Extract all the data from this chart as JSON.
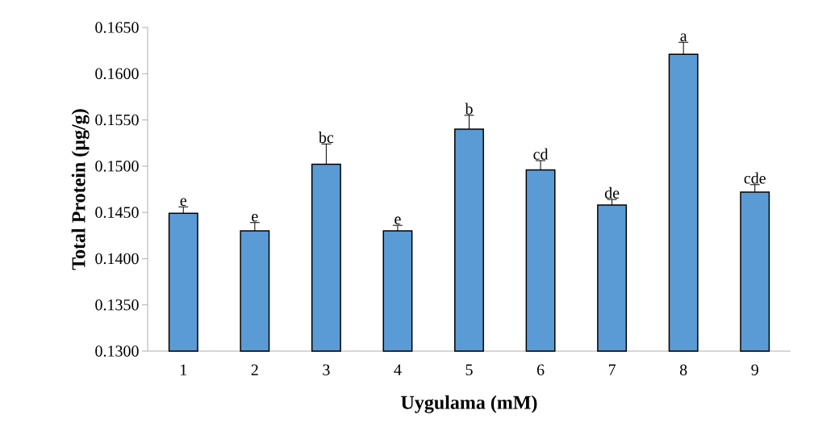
{
  "chart_data": {
    "type": "bar",
    "xlabel": "Uygulama (mM)",
    "ylabel": "Total Protein (µg/g)",
    "categories": [
      "1",
      "2",
      "3",
      "4",
      "5",
      "6",
      "7",
      "8",
      "9"
    ],
    "values": [
      0.1449,
      0.143,
      0.1502,
      0.143,
      0.154,
      0.1496,
      0.1458,
      0.1621,
      0.1472
    ],
    "errors": [
      0.0007,
      0.0009,
      0.0022,
      0.0006,
      0.0015,
      0.001,
      0.0006,
      0.0013,
      0.0008
    ],
    "color": "#5b9bd5",
    "ylim": [
      0.13,
      0.165
    ],
    "yticks": [
      {
        "value": 0.13,
        "label": "0.1300"
      },
      {
        "value": 0.135,
        "label": "0.1350"
      },
      {
        "value": 0.14,
        "label": "0.1400"
      },
      {
        "value": 0.145,
        "label": "0.1450"
      },
      {
        "value": 0.15,
        "label": "0.1500"
      },
      {
        "value": 0.155,
        "label": "0.1550"
      },
      {
        "value": 0.16,
        "label": "0.1600"
      },
      {
        "value": 0.165,
        "label": "0.1650"
      }
    ],
    "annotations": [
      {
        "text": "e",
        "x": "1",
        "y": 0.1456
      },
      {
        "text": "e",
        "x": "2",
        "y": 0.1439
      },
      {
        "text": "bc",
        "x": "3",
        "y": 0.1524
      },
      {
        "text": "e",
        "x": "4",
        "y": 0.1436
      },
      {
        "text": "b",
        "x": "5",
        "y": 0.1555
      },
      {
        "text": "cd",
        "x": "6",
        "y": 0.1506
      },
      {
        "text": "de",
        "x": "7",
        "y": 0.1464
      },
      {
        "text": "a",
        "x": "8",
        "y": 0.1634
      },
      {
        "text": "cde",
        "x": "9",
        "y": 0.148
      }
    ]
  }
}
